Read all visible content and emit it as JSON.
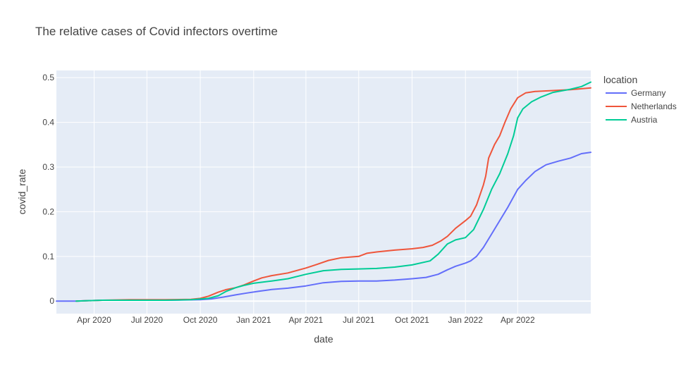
{
  "chart_data": {
    "type": "line",
    "title": "The relative cases of Covid infectors overtime",
    "xlabel": "date",
    "ylabel": "covid_rate",
    "x_ticks": [
      {
        "date": "2020-04-01",
        "label": "Apr 2020"
      },
      {
        "date": "2020-07-01",
        "label": "Jul 2020"
      },
      {
        "date": "2020-10-01",
        "label": "Oct 2020"
      },
      {
        "date": "2021-01-01",
        "label": "Jan 2021"
      },
      {
        "date": "2021-04-01",
        "label": "Apr 2021"
      },
      {
        "date": "2021-07-01",
        "label": "Jul 2021"
      },
      {
        "date": "2021-10-01",
        "label": "Oct 2021"
      },
      {
        "date": "2022-01-01",
        "label": "Jan 2022"
      },
      {
        "date": "2022-04-01",
        "label": "Apr 2022"
      }
    ],
    "y_ticks": [
      {
        "value": 0,
        "label": "0"
      },
      {
        "value": 0.1,
        "label": "0.1"
      },
      {
        "value": 0.2,
        "label": "0.2"
      },
      {
        "value": 0.3,
        "label": "0.3"
      },
      {
        "value": 0.4,
        "label": "0.4"
      },
      {
        "value": 0.5,
        "label": "0.5"
      }
    ],
    "xlim": [
      "2020-01-27",
      "2022-08-05"
    ],
    "ylim": [
      -0.028,
      0.516
    ],
    "grid": true,
    "legend": {
      "title": "location",
      "position": "right"
    },
    "series": [
      {
        "name": "Germany",
        "color": "#636efa",
        "points": [
          [
            "2020-01-27",
            0
          ],
          [
            "2020-03-01",
            0
          ],
          [
            "2020-04-15",
            0.002
          ],
          [
            "2020-06-01",
            0.002
          ],
          [
            "2020-08-01",
            0.002
          ],
          [
            "2020-10-01",
            0.003
          ],
          [
            "2020-10-20",
            0.005
          ],
          [
            "2020-11-10",
            0.009
          ],
          [
            "2020-12-01",
            0.014
          ],
          [
            "2020-12-20",
            0.018
          ],
          [
            "2021-01-10",
            0.022
          ],
          [
            "2021-02-01",
            0.026
          ],
          [
            "2021-03-01",
            0.029
          ],
          [
            "2021-04-01",
            0.034
          ],
          [
            "2021-05-01",
            0.041
          ],
          [
            "2021-06-01",
            0.044
          ],
          [
            "2021-07-01",
            0.045
          ],
          [
            "2021-08-01",
            0.045
          ],
          [
            "2021-09-01",
            0.047
          ],
          [
            "2021-10-01",
            0.05
          ],
          [
            "2021-10-25",
            0.053
          ],
          [
            "2021-11-15",
            0.06
          ],
          [
            "2021-12-01",
            0.07
          ],
          [
            "2021-12-15",
            0.078
          ],
          [
            "2022-01-01",
            0.085
          ],
          [
            "2022-01-10",
            0.09
          ],
          [
            "2022-01-20",
            0.1
          ],
          [
            "2022-02-01",
            0.12
          ],
          [
            "2022-02-15",
            0.15
          ],
          [
            "2022-03-01",
            0.18
          ],
          [
            "2022-03-15",
            0.21
          ],
          [
            "2022-04-01",
            0.25
          ],
          [
            "2022-04-15",
            0.27
          ],
          [
            "2022-05-01",
            0.29
          ],
          [
            "2022-05-20",
            0.305
          ],
          [
            "2022-06-10",
            0.313
          ],
          [
            "2022-07-01",
            0.32
          ],
          [
            "2022-07-20",
            0.33
          ],
          [
            "2022-08-05",
            0.333
          ]
        ]
      },
      {
        "name": "Netherlands",
        "color": "#ef553b",
        "points": [
          [
            "2020-03-01",
            0
          ],
          [
            "2020-04-15",
            0.002
          ],
          [
            "2020-06-01",
            0.003
          ],
          [
            "2020-08-01",
            0.003
          ],
          [
            "2020-09-15",
            0.004
          ],
          [
            "2020-10-01",
            0.006
          ],
          [
            "2020-10-15",
            0.011
          ],
          [
            "2020-11-01",
            0.02
          ],
          [
            "2020-11-15",
            0.026
          ],
          [
            "2020-12-01",
            0.03
          ],
          [
            "2020-12-15",
            0.036
          ],
          [
            "2021-01-01",
            0.045
          ],
          [
            "2021-01-15",
            0.052
          ],
          [
            "2021-02-01",
            0.057
          ],
          [
            "2021-03-01",
            0.063
          ],
          [
            "2021-04-01",
            0.074
          ],
          [
            "2021-04-20",
            0.082
          ],
          [
            "2021-05-10",
            0.091
          ],
          [
            "2021-06-01",
            0.097
          ],
          [
            "2021-07-01",
            0.1
          ],
          [
            "2021-07-15",
            0.107
          ],
          [
            "2021-08-01",
            0.11
          ],
          [
            "2021-09-01",
            0.114
          ],
          [
            "2021-10-01",
            0.117
          ],
          [
            "2021-10-20",
            0.12
          ],
          [
            "2021-11-05",
            0.125
          ],
          [
            "2021-11-20",
            0.135
          ],
          [
            "2021-12-01",
            0.145
          ],
          [
            "2021-12-15",
            0.163
          ],
          [
            "2022-01-01",
            0.18
          ],
          [
            "2022-01-10",
            0.19
          ],
          [
            "2022-01-20",
            0.215
          ],
          [
            "2022-02-01",
            0.26
          ],
          [
            "2022-02-05",
            0.28
          ],
          [
            "2022-02-10",
            0.32
          ],
          [
            "2022-02-20",
            0.35
          ],
          [
            "2022-03-01",
            0.37
          ],
          [
            "2022-03-10",
            0.4
          ],
          [
            "2022-03-20",
            0.43
          ],
          [
            "2022-04-01",
            0.455
          ],
          [
            "2022-04-15",
            0.466
          ],
          [
            "2022-05-01",
            0.469
          ],
          [
            "2022-06-01",
            0.471
          ],
          [
            "2022-07-01",
            0.473
          ],
          [
            "2022-08-05",
            0.477
          ]
        ]
      },
      {
        "name": "Austria",
        "color": "#00cc96",
        "points": [
          [
            "2020-03-01",
            0
          ],
          [
            "2020-04-15",
            0.002
          ],
          [
            "2020-06-01",
            0.002
          ],
          [
            "2020-08-01",
            0.002
          ],
          [
            "2020-09-15",
            0.003
          ],
          [
            "2020-10-15",
            0.006
          ],
          [
            "2020-11-01",
            0.012
          ],
          [
            "2020-11-15",
            0.022
          ],
          [
            "2020-12-01",
            0.03
          ],
          [
            "2020-12-15",
            0.035
          ],
          [
            "2021-01-01",
            0.04
          ],
          [
            "2021-02-01",
            0.045
          ],
          [
            "2021-03-01",
            0.05
          ],
          [
            "2021-04-01",
            0.06
          ],
          [
            "2021-05-01",
            0.068
          ],
          [
            "2021-06-01",
            0.071
          ],
          [
            "2021-07-01",
            0.072
          ],
          [
            "2021-08-01",
            0.073
          ],
          [
            "2021-09-01",
            0.076
          ],
          [
            "2021-10-01",
            0.081
          ],
          [
            "2021-11-01",
            0.09
          ],
          [
            "2021-11-15",
            0.105
          ],
          [
            "2021-12-01",
            0.128
          ],
          [
            "2021-12-15",
            0.137
          ],
          [
            "2022-01-01",
            0.142
          ],
          [
            "2022-01-15",
            0.16
          ],
          [
            "2022-02-01",
            0.205
          ],
          [
            "2022-02-15",
            0.25
          ],
          [
            "2022-03-01",
            0.285
          ],
          [
            "2022-03-15",
            0.33
          ],
          [
            "2022-03-25",
            0.37
          ],
          [
            "2022-04-01",
            0.41
          ],
          [
            "2022-04-10",
            0.43
          ],
          [
            "2022-04-25",
            0.446
          ],
          [
            "2022-05-10",
            0.456
          ],
          [
            "2022-06-01",
            0.467
          ],
          [
            "2022-07-01",
            0.474
          ],
          [
            "2022-07-20",
            0.48
          ],
          [
            "2022-08-05",
            0.49
          ]
        ]
      }
    ]
  }
}
